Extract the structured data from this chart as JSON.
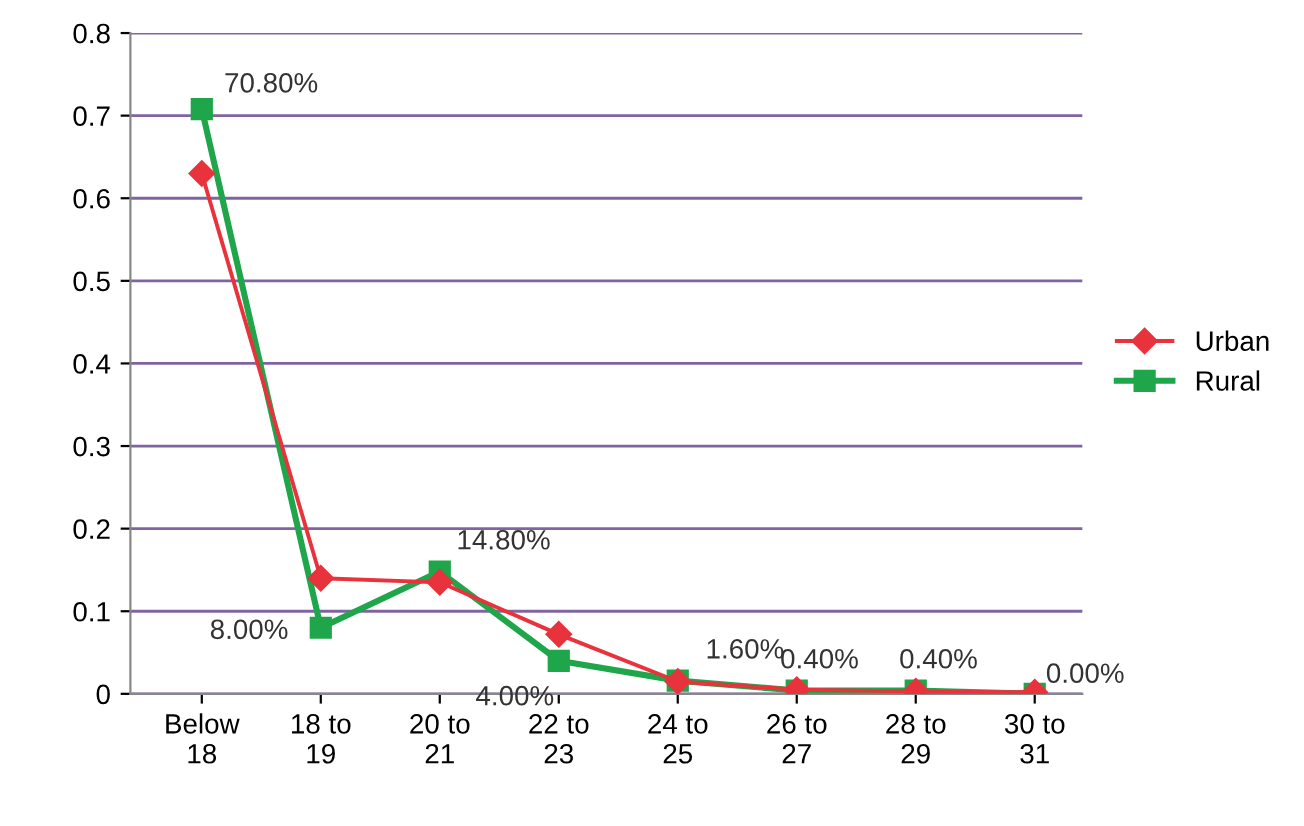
{
  "chart_data": {
    "type": "line",
    "categories": [
      "Below\n18",
      "18 to\n19",
      "20 to\n21",
      "22 to\n23",
      "24 to\n25",
      "26 to\n27",
      "28 to\n29",
      "30 to\n31"
    ],
    "series": [
      {
        "name": "Urban",
        "color": "#e8323c",
        "marker": "diamond",
        "values": [
          0.63,
          0.14,
          0.135,
          0.072,
          0.015,
          0.005,
          0.003,
          0.002
        ]
      },
      {
        "name": "Rural",
        "color": "#1fa64a",
        "marker": "square",
        "values": [
          0.708,
          0.08,
          0.148,
          0.04,
          0.016,
          0.004,
          0.004,
          0.0
        ],
        "value_labels": [
          "70.80%",
          "8.00%",
          "14.80%",
          "4.00%",
          "1.60%",
          "0.40%",
          "0.40%",
          "0.00%"
        ]
      }
    ],
    "ylim": [
      0,
      0.8
    ],
    "yticks": [
      0,
      0.1,
      0.2,
      0.3,
      0.4,
      0.5,
      0.6,
      0.7,
      0.8
    ],
    "grid": "y",
    "legend": "right"
  }
}
